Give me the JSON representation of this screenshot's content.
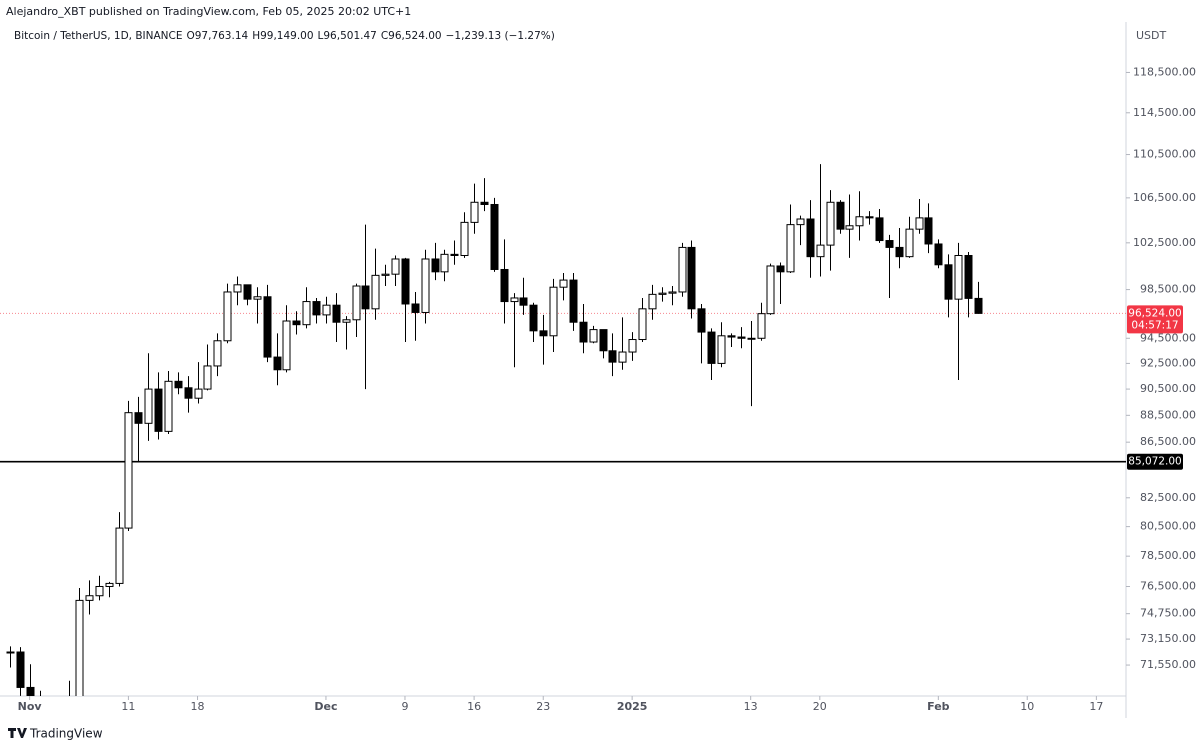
{
  "header": {
    "publisher": "Alejandro_XBT published on TradingView.com, Feb 05, 2025 20:02 UTC+1"
  },
  "footer": {
    "logo": "TradingView"
  },
  "chart_data": {
    "type": "candlestick",
    "title": "Bitcoin / TetherUS, 1D, BINANCE",
    "ohlc_legend": [
      "O97,763.14",
      "H99,149.00",
      "L96,501.47",
      "C96,524.00",
      "−1,239.13 (−1.27%)"
    ],
    "y_unit": "USDT",
    "log_scale": true,
    "grid": false,
    "up_color": "#ffffff",
    "down_color": "#000000",
    "border_color": "#000000",
    "x": [
      "2024-10-30",
      "2024-10-31",
      "2024-11-01",
      "2024-11-02",
      "2024-11-03",
      "2024-11-04",
      "2024-11-05",
      "2024-11-06",
      "2024-11-07",
      "2024-11-08",
      "2024-11-09",
      "2024-11-10",
      "2024-11-11",
      "2024-11-12",
      "2024-11-13",
      "2024-11-14",
      "2024-11-15",
      "2024-11-16",
      "2024-11-17",
      "2024-11-18",
      "2024-11-19",
      "2024-11-20",
      "2024-11-21",
      "2024-11-22",
      "2024-11-23",
      "2024-11-24",
      "2024-11-25",
      "2024-11-26",
      "2024-11-27",
      "2024-11-28",
      "2024-11-29",
      "2024-11-30",
      "2024-12-01",
      "2024-12-02",
      "2024-12-03",
      "2024-12-04",
      "2024-12-05",
      "2024-12-06",
      "2024-12-07",
      "2024-12-08",
      "2024-12-09",
      "2024-12-10",
      "2024-12-11",
      "2024-12-12",
      "2024-12-13",
      "2024-12-14",
      "2024-12-15",
      "2024-12-16",
      "2024-12-17",
      "2024-12-18",
      "2024-12-19",
      "2024-12-20",
      "2024-12-21",
      "2024-12-22",
      "2024-12-23",
      "2024-12-24",
      "2024-12-25",
      "2024-12-26",
      "2024-12-27",
      "2024-12-28",
      "2024-12-29",
      "2024-12-30",
      "2024-12-31",
      "2025-01-01",
      "2025-01-02",
      "2025-01-03",
      "2025-01-04",
      "2025-01-05",
      "2025-01-06",
      "2025-01-07",
      "2025-01-08",
      "2025-01-09",
      "2025-01-10",
      "2025-01-11",
      "2025-01-12",
      "2025-01-13",
      "2025-01-14",
      "2025-01-15",
      "2025-01-16",
      "2025-01-17",
      "2025-01-18",
      "2025-01-19",
      "2025-01-20",
      "2025-01-21",
      "2025-01-22",
      "2025-01-23",
      "2025-01-24",
      "2025-01-25",
      "2025-01-26",
      "2025-01-27",
      "2025-01-28",
      "2025-01-29",
      "2025-01-30",
      "2025-01-31",
      "2025-02-01",
      "2025-02-02",
      "2025-02-03",
      "2025-02-04",
      "2025-02-05"
    ],
    "open": [
      72300,
      72350,
      70200,
      69500,
      69300,
      68700,
      67800,
      69350,
      75600,
      75900,
      76500,
      76700,
      80400,
      88700,
      87900,
      90500,
      87300,
      91100,
      90600,
      89800,
      90500,
      92300,
      94300,
      98300,
      98900,
      97700,
      97900,
      93000,
      92000,
      95900,
      95600,
      97500,
      96400,
      97200,
      95800,
      96000,
      98800,
      96900,
      99700,
      99800,
      101100,
      97300,
      96600,
      101100,
      100000,
      101500,
      101400,
      104300,
      106100,
      105900,
      100200,
      97500,
      97800,
      97200,
      95100,
      94700,
      98700,
      99300,
      95800,
      94200,
      95200,
      93500,
      92600,
      93400,
      94400,
      96900,
      98100,
      98200,
      98300,
      102100,
      96900,
      95000,
      92500,
      94700,
      94600,
      94500,
      94500,
      96500,
      100500,
      100000,
      104100,
      104600,
      101300,
      102300,
      106100,
      103700,
      104000,
      104800,
      104700,
      102700,
      102100,
      101300,
      103700,
      104700,
      102400,
      100600,
      97700,
      101400,
      97763.14
    ],
    "high": [
      72700,
      72650,
      71600,
      70000,
      69400,
      69500,
      70600,
      76400,
      76900,
      77200,
      76800,
      81500,
      89600,
      89900,
      93300,
      91800,
      91900,
      91800,
      91500,
      92600,
      94000,
      94900,
      99000,
      99600,
      98900,
      98700,
      98900,
      94900,
      97200,
      96700,
      98700,
      97800,
      97900,
      98200,
      96300,
      99000,
      104100,
      102000,
      100600,
      101400,
      101200,
      98300,
      101900,
      102500,
      101900,
      102700,
      105200,
      107800,
      108300,
      106500,
      102800,
      98200,
      99500,
      97400,
      96400,
      99400,
      99900,
      99900,
      97300,
      95500,
      95200,
      94900,
      96200,
      95000,
      97800,
      98900,
      98700,
      98800,
      102500,
      102700,
      97300,
      95300,
      95800,
      94900,
      95400,
      95900,
      97400,
      100700,
      100800,
      105900,
      104900,
      106300,
      109600,
      107200,
      106300,
      106800,
      107100,
      105300,
      105500,
      103200,
      103800,
      104800,
      106400,
      106000,
      102800,
      101500,
      102500,
      101700,
      99149.0
    ],
    "low": [
      71400,
      69700,
      68800,
      69000,
      67500,
      66800,
      67400,
      69300,
      74700,
      75600,
      75800,
      76500,
      80200,
      85100,
      86600,
      86700,
      87100,
      90100,
      88700,
      89400,
      90400,
      91500,
      94100,
      97200,
      97200,
      95700,
      92600,
      90800,
      91800,
      94800,
      95300,
      95700,
      95700,
      94200,
      93600,
      94600,
      90500,
      96000,
      98800,
      98800,
      94200,
      94300,
      95700,
      99300,
      99200,
      100600,
      101200,
      103300,
      105300,
      100000,
      95700,
      92200,
      96400,
      94200,
      92400,
      93400,
      97600,
      95100,
      93300,
      94100,
      92900,
      91500,
      92000,
      92700,
      94200,
      96000,
      97500,
      97200,
      97900,
      96100,
      92500,
      91200,
      92200,
      93800,
      93700,
      89200,
      94300,
      96400,
      97300,
      99900,
      102300,
      99500,
      99600,
      100100,
      103300,
      101200,
      102700,
      104100,
      102500,
      97800,
      100300,
      101200,
      103300,
      101600,
      100300,
      96200,
      91200,
      96200,
      96501.47
    ],
    "close": [
      72350,
      70200,
      69500,
      69300,
      68700,
      67800,
      69350,
      75600,
      75900,
      76500,
      76700,
      80400,
      88700,
      87900,
      90500,
      87300,
      91100,
      90600,
      89800,
      90500,
      92300,
      94300,
      98300,
      98900,
      97700,
      97900,
      93000,
      92000,
      95900,
      95600,
      97500,
      96400,
      97200,
      95800,
      96000,
      98800,
      96900,
      99700,
      99800,
      101100,
      97300,
      96600,
      101100,
      100000,
      101500,
      101400,
      104300,
      106100,
      105900,
      100200,
      97500,
      97800,
      97200,
      95100,
      94700,
      98700,
      99300,
      95800,
      94200,
      95200,
      93500,
      92600,
      93400,
      94400,
      96900,
      98100,
      98200,
      98300,
      102100,
      96900,
      95000,
      92500,
      94700,
      94600,
      94500,
      94500,
      96500,
      100500,
      100000,
      104100,
      104600,
      101300,
      102300,
      106100,
      103700,
      104000,
      104800,
      104700,
      102700,
      102100,
      101300,
      103700,
      104700,
      102400,
      100600,
      97700,
      101400,
      97763.14,
      96524.0
    ],
    "xlim": [
      "2024-10-29",
      "2025-02-20"
    ],
    "xticks": [
      {
        "value": "2024-11-01",
        "label": "Nov"
      },
      {
        "value": "2024-11-11",
        "label": "11"
      },
      {
        "value": "2024-11-18",
        "label": "18"
      },
      {
        "value": "2024-12-01",
        "label": "Dec"
      },
      {
        "value": "2024-12-09",
        "label": "9"
      },
      {
        "value": "2024-12-16",
        "label": "16"
      },
      {
        "value": "2024-12-23",
        "label": "23"
      },
      {
        "value": "2025-01-01",
        "label": "2025"
      },
      {
        "value": "2025-01-13",
        "label": "13"
      },
      {
        "value": "2025-01-20",
        "label": "20"
      },
      {
        "value": "2025-02-01",
        "label": "Feb"
      },
      {
        "value": "2025-02-10",
        "label": "10"
      },
      {
        "value": "2025-02-17",
        "label": "17"
      }
    ],
    "ylim": [
      69690,
      123700
    ],
    "yticks": [
      {
        "value": 71550,
        "label": "71,550.00"
      },
      {
        "value": 73150,
        "label": "73,150.00"
      },
      {
        "value": 74750,
        "label": "74,750.00"
      },
      {
        "value": 76500,
        "label": "76,500.00"
      },
      {
        "value": 78500,
        "label": "78,500.00"
      },
      {
        "value": 80500,
        "label": "80,500.00"
      },
      {
        "value": 82500,
        "label": "82,500.00"
      },
      {
        "value": 86500,
        "label": "86,500.00"
      },
      {
        "value": 88500,
        "label": "88,500.00"
      },
      {
        "value": 90500,
        "label": "90,500.00"
      },
      {
        "value": 92500,
        "label": "92,500.00"
      },
      {
        "value": 94500,
        "label": "94,500.00"
      },
      {
        "value": 98500,
        "label": "98,500.00"
      },
      {
        "value": 102500,
        "label": "102,500.00"
      },
      {
        "value": 106500,
        "label": "106,500.00"
      },
      {
        "value": 110500,
        "label": "110,500.00"
      },
      {
        "value": 114500,
        "label": "114,500.00"
      },
      {
        "value": 118500,
        "label": "118,500.00"
      }
    ],
    "horizontal_line": {
      "value": 85072,
      "label": "85,072.00",
      "color": "#000000"
    },
    "last_price": {
      "value": 96524,
      "label": "96,524.00",
      "countdown": "04:57:17",
      "color": "#f23645"
    }
  }
}
